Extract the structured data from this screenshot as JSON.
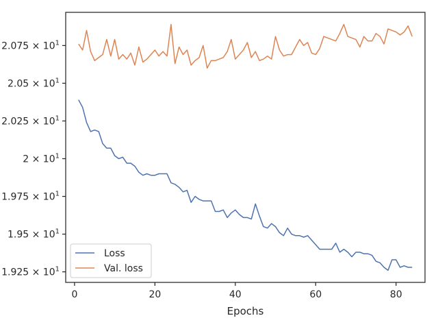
{
  "chart_data": {
    "type": "line",
    "title": "",
    "xlabel": "Epochs",
    "ylabel": "",
    "xlim": [
      -2.2,
      87.2
    ],
    "ylim": [
      19.18,
      20.97
    ],
    "xticks": [
      0,
      20,
      40,
      60,
      80
    ],
    "xtick_labels": [
      "0",
      "20",
      "40",
      "60",
      "80"
    ],
    "yticks": [
      19.25,
      19.5,
      19.75,
      20.0,
      20.25,
      20.5,
      20.75
    ],
    "ytick_labels": [
      {
        "mant": "1.925",
        "exp": "1"
      },
      {
        "mant": "1.95",
        "exp": "1"
      },
      {
        "mant": "1.975",
        "exp": "1"
      },
      {
        "mant": "2",
        "exp": "1"
      },
      {
        "mant": "2.025",
        "exp": "1"
      },
      {
        "mant": "2.05",
        "exp": "1"
      },
      {
        "mant": "2.075",
        "exp": "1"
      }
    ],
    "tick_times": "×",
    "tick_base": "10",
    "grid": false,
    "legend_position": "lower-left",
    "colors": {
      "loss": "#4c72b0",
      "val_loss": "#dd8452",
      "axis": "#262626"
    },
    "x": [
      1,
      2,
      3,
      4,
      5,
      6,
      7,
      8,
      9,
      10,
      11,
      12,
      13,
      14,
      15,
      16,
      17,
      18,
      19,
      20,
      21,
      22,
      23,
      24,
      25,
      26,
      27,
      28,
      29,
      30,
      31,
      32,
      33,
      34,
      35,
      36,
      37,
      38,
      39,
      40,
      41,
      42,
      43,
      44,
      45,
      46,
      47,
      48,
      49,
      50,
      51,
      52,
      53,
      54,
      55,
      56,
      57,
      58,
      59,
      60,
      61,
      62,
      63,
      64,
      65,
      66,
      67,
      68,
      69,
      70,
      71,
      72,
      73,
      74,
      75,
      76,
      77,
      78,
      79,
      80,
      81,
      82,
      83,
      84
    ],
    "series": [
      {
        "name": "Loss",
        "values": [
          20.39,
          20.34,
          20.24,
          20.18,
          20.19,
          20.18,
          20.1,
          20.07,
          20.07,
          20.02,
          20.0,
          20.01,
          19.97,
          19.97,
          19.95,
          19.91,
          19.89,
          19.9,
          19.89,
          19.89,
          19.9,
          19.9,
          19.9,
          19.84,
          19.83,
          19.81,
          19.78,
          19.79,
          19.71,
          19.75,
          19.73,
          19.72,
          19.72,
          19.72,
          19.65,
          19.65,
          19.66,
          19.61,
          19.64,
          19.66,
          19.63,
          19.61,
          19.61,
          19.6,
          19.7,
          19.62,
          19.55,
          19.54,
          19.57,
          19.55,
          19.51,
          19.49,
          19.54,
          19.5,
          19.49,
          19.49,
          19.48,
          19.49,
          19.46,
          19.43,
          19.4,
          19.4,
          19.4,
          19.4,
          19.44,
          19.38,
          19.4,
          19.38,
          19.35,
          19.38,
          19.38,
          19.37,
          19.37,
          19.36,
          19.32,
          19.31,
          19.28,
          19.26,
          19.33,
          19.33,
          19.28,
          19.29,
          19.28,
          19.28
        ]
      },
      {
        "name": "Val. loss",
        "values": [
          20.76,
          20.72,
          20.85,
          20.71,
          20.65,
          20.67,
          20.69,
          20.79,
          20.68,
          20.79,
          20.66,
          20.69,
          20.66,
          20.7,
          20.62,
          20.74,
          20.64,
          20.66,
          20.69,
          20.72,
          20.68,
          20.71,
          20.68,
          20.89,
          20.63,
          20.74,
          20.69,
          20.72,
          20.62,
          20.65,
          20.67,
          20.75,
          20.6,
          20.65,
          20.65,
          20.66,
          20.67,
          20.71,
          20.79,
          20.66,
          20.69,
          20.72,
          20.77,
          20.67,
          20.71,
          20.65,
          20.66,
          20.68,
          20.66,
          20.81,
          20.72,
          20.68,
          20.69,
          20.69,
          20.74,
          20.79,
          20.75,
          20.77,
          20.7,
          20.69,
          20.73,
          20.81,
          20.8,
          20.79,
          20.78,
          20.83,
          20.89,
          20.81,
          20.8,
          20.79,
          20.74,
          20.81,
          20.78,
          20.78,
          20.83,
          20.81,
          20.76,
          20.86,
          20.85,
          20.84,
          20.82,
          20.84,
          20.88,
          20.81
        ]
      }
    ]
  }
}
